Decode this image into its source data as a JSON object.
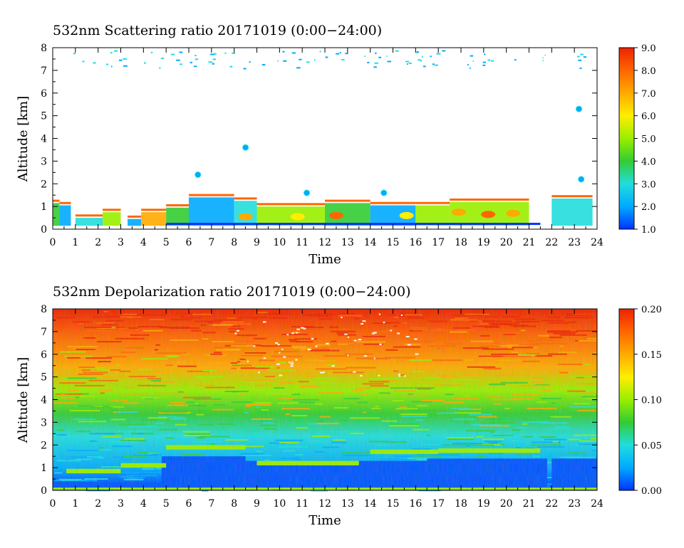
{
  "chart_data": [
    {
      "type": "heatmap",
      "title": "532nm Scattering ratio  20171019 (0:00−24:00)",
      "xlabel": "Time",
      "ylabel": "Altitude [km]",
      "xlim": [
        0,
        24
      ],
      "ylim": [
        0,
        8
      ],
      "x_ticks": [
        "0",
        "1",
        "2",
        "3",
        "4",
        "5",
        "6",
        "7",
        "8",
        "9",
        "10",
        "11",
        "12",
        "13",
        "14",
        "15",
        "16",
        "17",
        "18",
        "19",
        "20",
        "21",
        "22",
        "23",
        "24"
      ],
      "y_ticks": [
        "0",
        "1",
        "2",
        "3",
        "4",
        "5",
        "6",
        "7",
        "8"
      ],
      "colorbar": {
        "range": [
          1.0,
          9.0
        ],
        "ticks": [
          "1.0",
          "2.0",
          "3.0",
          "4.0",
          "5.0",
          "6.0",
          "7.0",
          "8.0",
          "9.0"
        ],
        "colors": [
          "#0033ff",
          "#00aaff",
          "#22dddd",
          "#33cc33",
          "#99ee00",
          "#ffee00",
          "#ffaa00",
          "#ff6600",
          "#ee2200"
        ]
      }
    },
    {
      "type": "heatmap",
      "title": "532nm Depolarization ratio  20171019 (0:00−24:00)",
      "xlabel": "Time",
      "ylabel": "Altitude [km]",
      "xlim": [
        0,
        24
      ],
      "ylim": [
        0,
        8
      ],
      "x_ticks": [
        "0",
        "1",
        "2",
        "3",
        "4",
        "5",
        "6",
        "7",
        "8",
        "9",
        "10",
        "11",
        "12",
        "13",
        "14",
        "15",
        "16",
        "17",
        "18",
        "19",
        "20",
        "21",
        "22",
        "23",
        "24"
      ],
      "y_ticks": [
        "0",
        "1",
        "2",
        "3",
        "4",
        "5",
        "6",
        "7",
        "8"
      ],
      "colorbar": {
        "range": [
          0.0,
          0.2
        ],
        "ticks": [
          "0.00",
          "0.05",
          "0.10",
          "0.15",
          "0.20"
        ],
        "colors": [
          "#0033ff",
          "#00aaff",
          "#22dddd",
          "#33cc33",
          "#99ee00",
          "#ffee00",
          "#ffaa00",
          "#ff6600",
          "#ee2200"
        ]
      }
    }
  ]
}
